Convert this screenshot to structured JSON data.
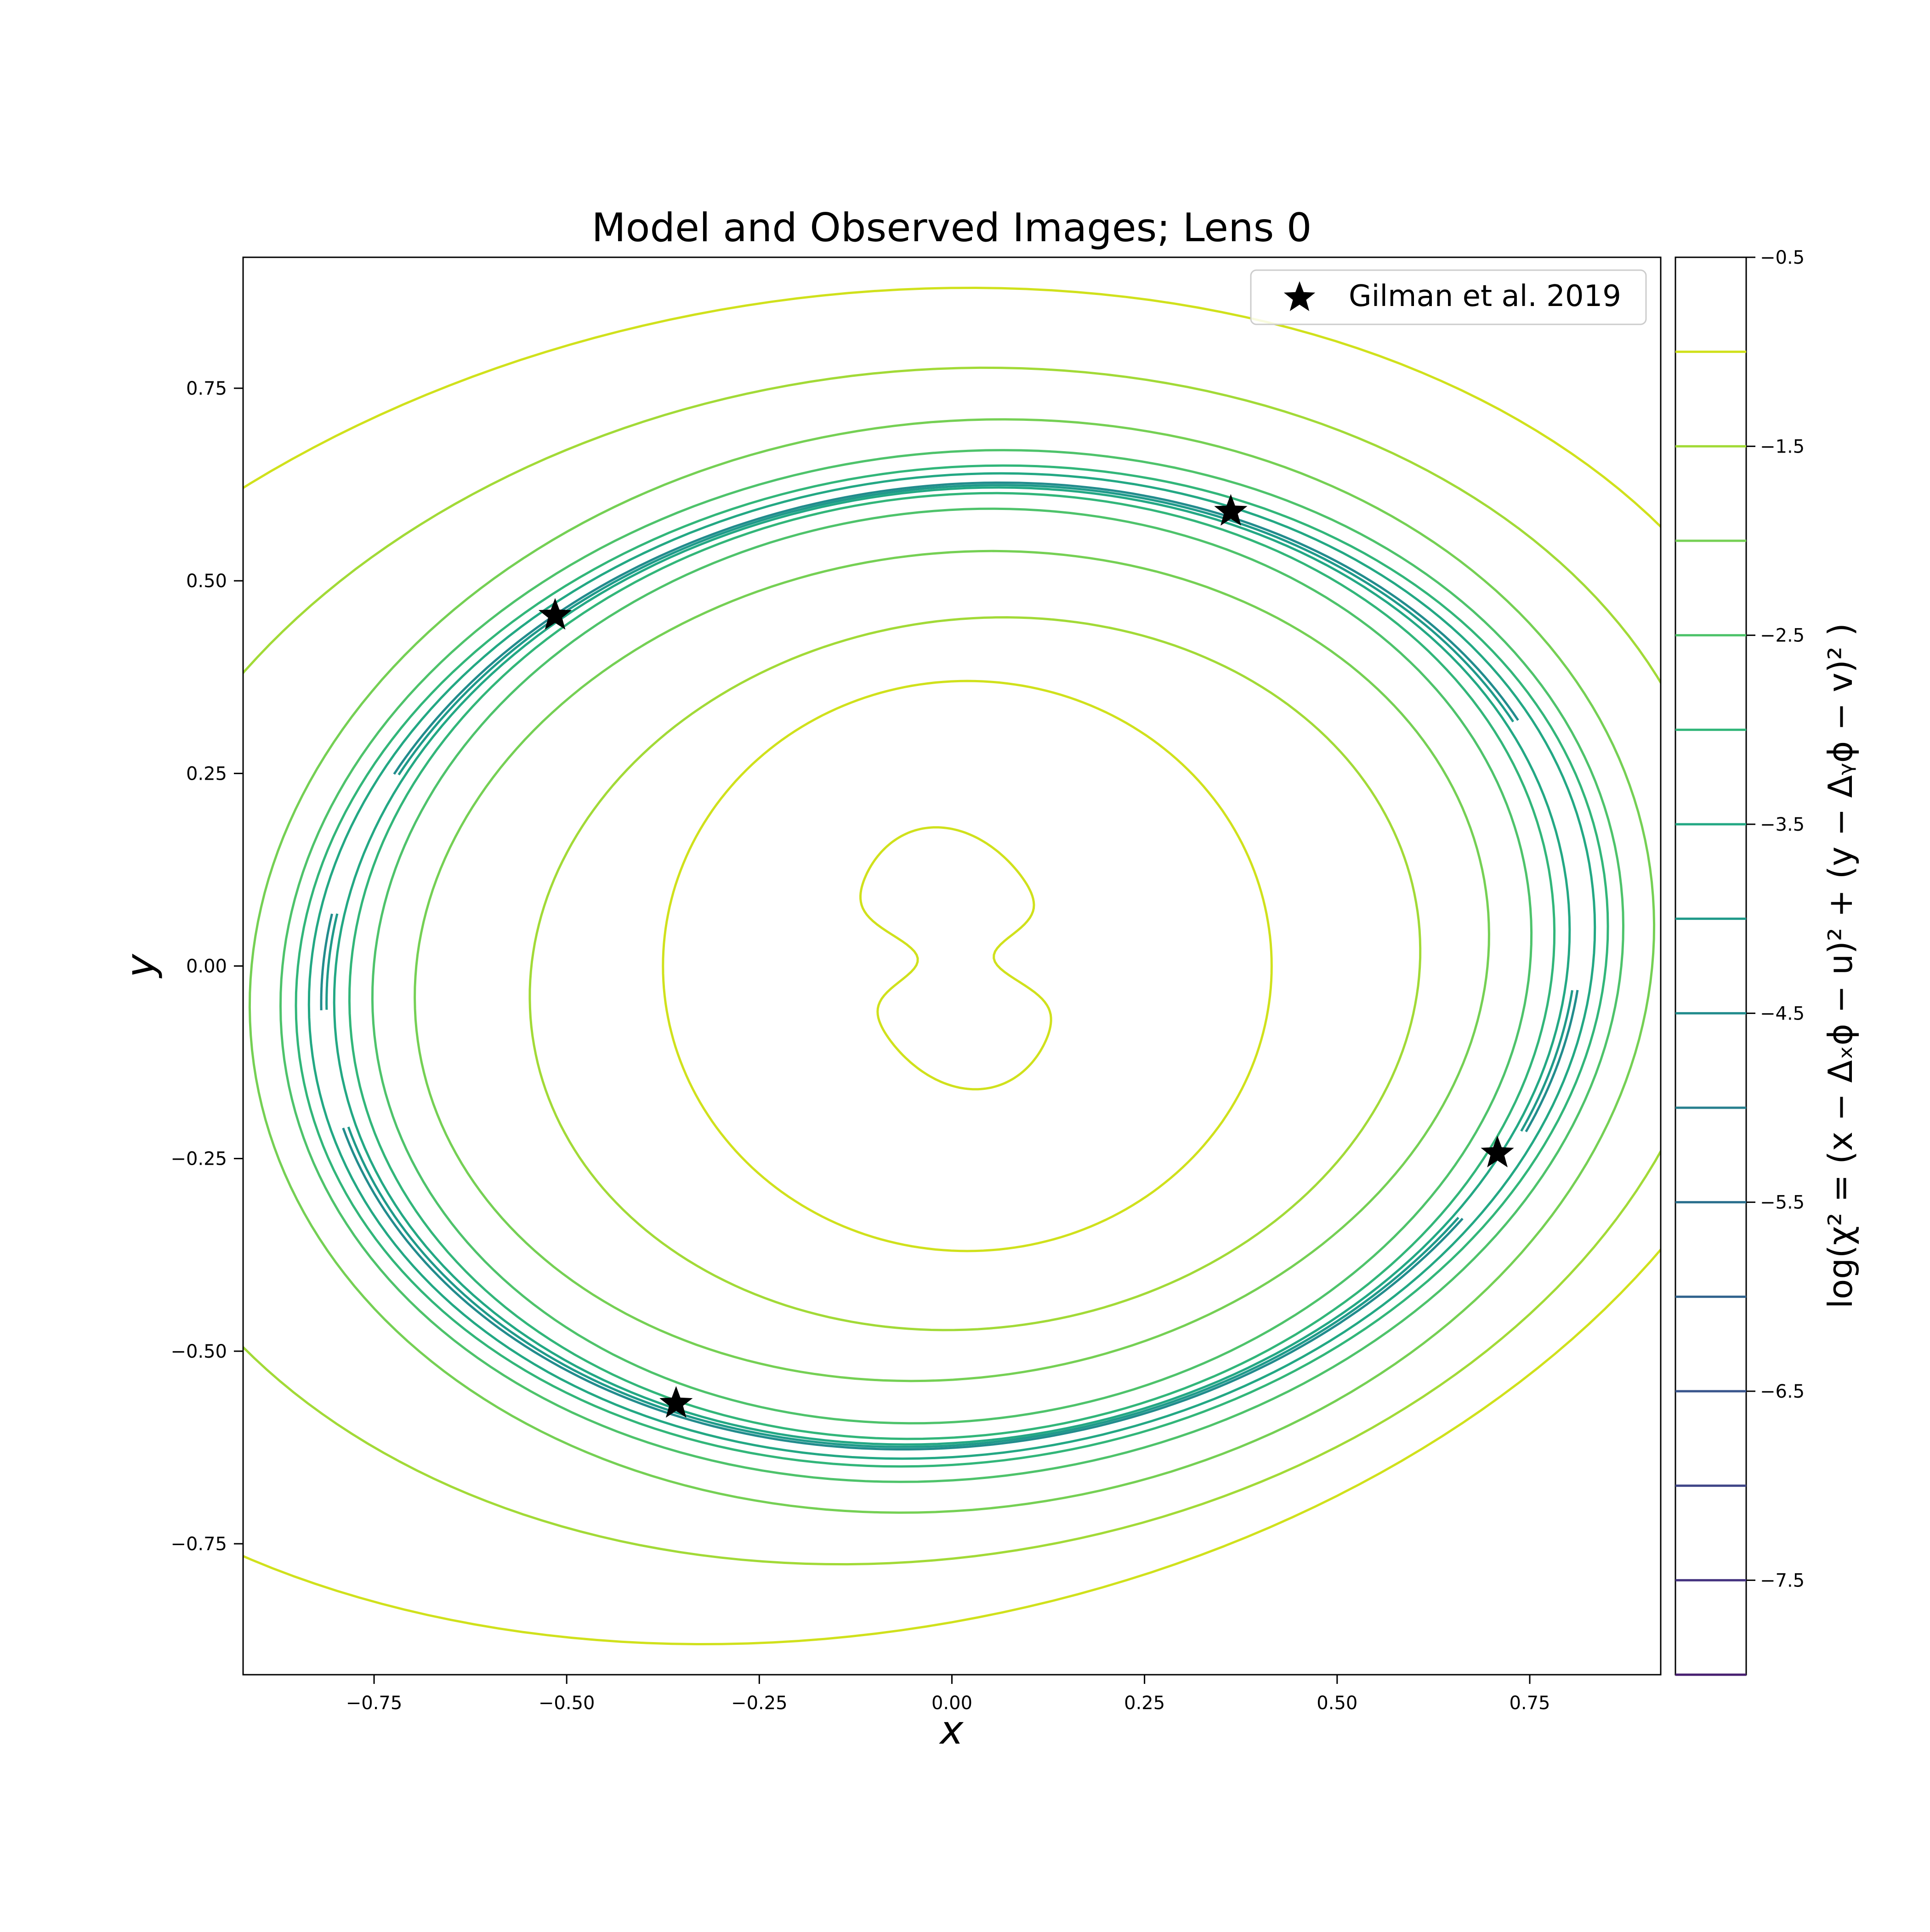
{
  "chart_data": {
    "type": "contour",
    "title": "Model and Observed Images; Lens 0",
    "xlabel": "x",
    "ylabel": "y",
    "xlim": [
      -0.92,
      0.92
    ],
    "ylim": [
      -0.92,
      0.92
    ],
    "x_ticks": [
      -0.75,
      -0.5,
      -0.25,
      0.0,
      0.25,
      0.5,
      0.75
    ],
    "x_tick_labels": [
      "−0.75",
      "−0.50",
      "−0.25",
      "0.00",
      "0.25",
      "0.50",
      "0.75"
    ],
    "y_ticks": [
      -0.75,
      -0.5,
      -0.25,
      0.0,
      0.25,
      0.5,
      0.75
    ],
    "y_tick_labels": [
      "−0.75",
      "−0.50",
      "−0.25",
      "0.00",
      "0.25",
      "0.50",
      "0.75"
    ],
    "legend": {
      "placement": "upper right",
      "entries": [
        {
          "label": "Gilman et al. 2019",
          "marker": "star",
          "color": "#000000"
        }
      ]
    },
    "points": {
      "name": "Gilman et al. 2019",
      "x": [
        -0.515,
        0.362,
        0.708,
        -0.358
      ],
      "y": [
        0.455,
        0.59,
        -0.243,
        -0.568
      ]
    },
    "colorbar": {
      "label": "log(χ² = (x − Δₓϕ − u)² + (y − Δᵧϕ − v)² )",
      "range": [
        -8.0,
        -0.5
      ],
      "tick_values": [
        -0.5,
        -1.5,
        -2.5,
        -3.5,
        -4.5,
        -5.5,
        -6.5,
        -7.5
      ],
      "tick_labels": [
        "−0.5",
        "−1.5",
        "−2.5",
        "−3.5",
        "−4.5",
        "−5.5",
        "−6.5",
        "−7.5"
      ],
      "line_levels": [
        -1.0,
        -1.5,
        -2.0,
        -2.5,
        -3.0,
        -3.5,
        -4.0,
        -4.5,
        -5.0,
        -5.5,
        -6.0,
        -6.5,
        -7.0,
        -7.5,
        -8.0
      ],
      "line_colors": [
        "#d0e11c",
        "#a2da37",
        "#75d054",
        "#4ec36b",
        "#32b67a",
        "#23a884",
        "#1f9a8a",
        "#228c8d",
        "#277f8e",
        "#2c718e",
        "#32648e",
        "#39558c",
        "#404688",
        "#463480",
        "#481f70"
      ]
    },
    "contours": [
      {
        "level": -1.0,
        "color": "#d0e11c",
        "cx": 0.005,
        "cy": 0.01,
        "rx": 0.13,
        "ry": 0.17,
        "rot": 0,
        "kind": "peanut"
      },
      {
        "level": -1.0,
        "color": "#d0e11c",
        "cx": 0.02,
        "cy": 0.0,
        "rx": 0.395,
        "ry": 0.37,
        "rot": 0,
        "kind": "ellipse"
      },
      {
        "level": -1.0,
        "color": "#d0e11c",
        "cx": -0.15,
        "cy": 0.0,
        "rx": 1.28,
        "ry": 0.865,
        "rot": 10,
        "kind": "ellipse"
      },
      {
        "level": -1.5,
        "color": "#a2da37",
        "cx": 0.03,
        "cy": -0.01,
        "rx": 0.58,
        "ry": 0.46,
        "rot": 8,
        "kind": "ellipse"
      },
      {
        "level": -1.5,
        "color": "#a2da37",
        "cx": -0.05,
        "cy": 0.0,
        "rx": 1.06,
        "ry": 0.77,
        "rot": 8,
        "kind": "ellipse"
      },
      {
        "level": -2.0,
        "color": "#75d054",
        "cx": 0.0,
        "cy": 0.0,
        "rx": 0.7,
        "ry": 0.535,
        "rot": 8,
        "kind": "ellipse"
      },
      {
        "level": -2.0,
        "color": "#75d054",
        "cx": 0.0,
        "cy": 0.0,
        "rx": 0.915,
        "ry": 0.705,
        "rot": 8,
        "kind": "ellipse"
      },
      {
        "level": -2.5,
        "color": "#4ec36b",
        "cx": 0.0,
        "cy": 0.0,
        "rx": 0.755,
        "ry": 0.59,
        "rot": 8,
        "kind": "ellipse"
      },
      {
        "level": -2.5,
        "color": "#4ec36b",
        "cx": 0.0,
        "cy": 0.0,
        "rx": 0.875,
        "ry": 0.665,
        "rot": 8,
        "kind": "ellipse"
      },
      {
        "level": -3.0,
        "color": "#32b67a",
        "cx": 0.0,
        "cy": 0.0,
        "rx": 0.785,
        "ry": 0.61,
        "rot": 8,
        "kind": "ellipse"
      },
      {
        "level": -3.0,
        "color": "#32b67a",
        "cx": 0.0,
        "cy": 0.0,
        "rx": 0.855,
        "ry": 0.645,
        "rot": 8,
        "kind": "ellipse"
      },
      {
        "level": -3.5,
        "color": "#23a884",
        "cx": 0.0,
        "cy": 0.0,
        "rx": 0.805,
        "ry": 0.617,
        "rot": 8,
        "kind": "ellipse"
      },
      {
        "level": -3.5,
        "color": "#23a884",
        "cx": 0.0,
        "cy": 0.0,
        "rx": 0.838,
        "ry": 0.635,
        "rot": 8,
        "kind": "ellipse"
      },
      {
        "level": -4.0,
        "color": "#1f9a8a",
        "cx": 0.0,
        "cy": 0.0,
        "rx": 0.815,
        "ry": 0.62,
        "rot": 8,
        "kind": "arcs"
      },
      {
        "level": -4.5,
        "color": "#228c8d",
        "cx": 0.0,
        "cy": 0.0,
        "rx": 0.822,
        "ry": 0.623,
        "rot": 8,
        "kind": "arcs"
      }
    ]
  }
}
